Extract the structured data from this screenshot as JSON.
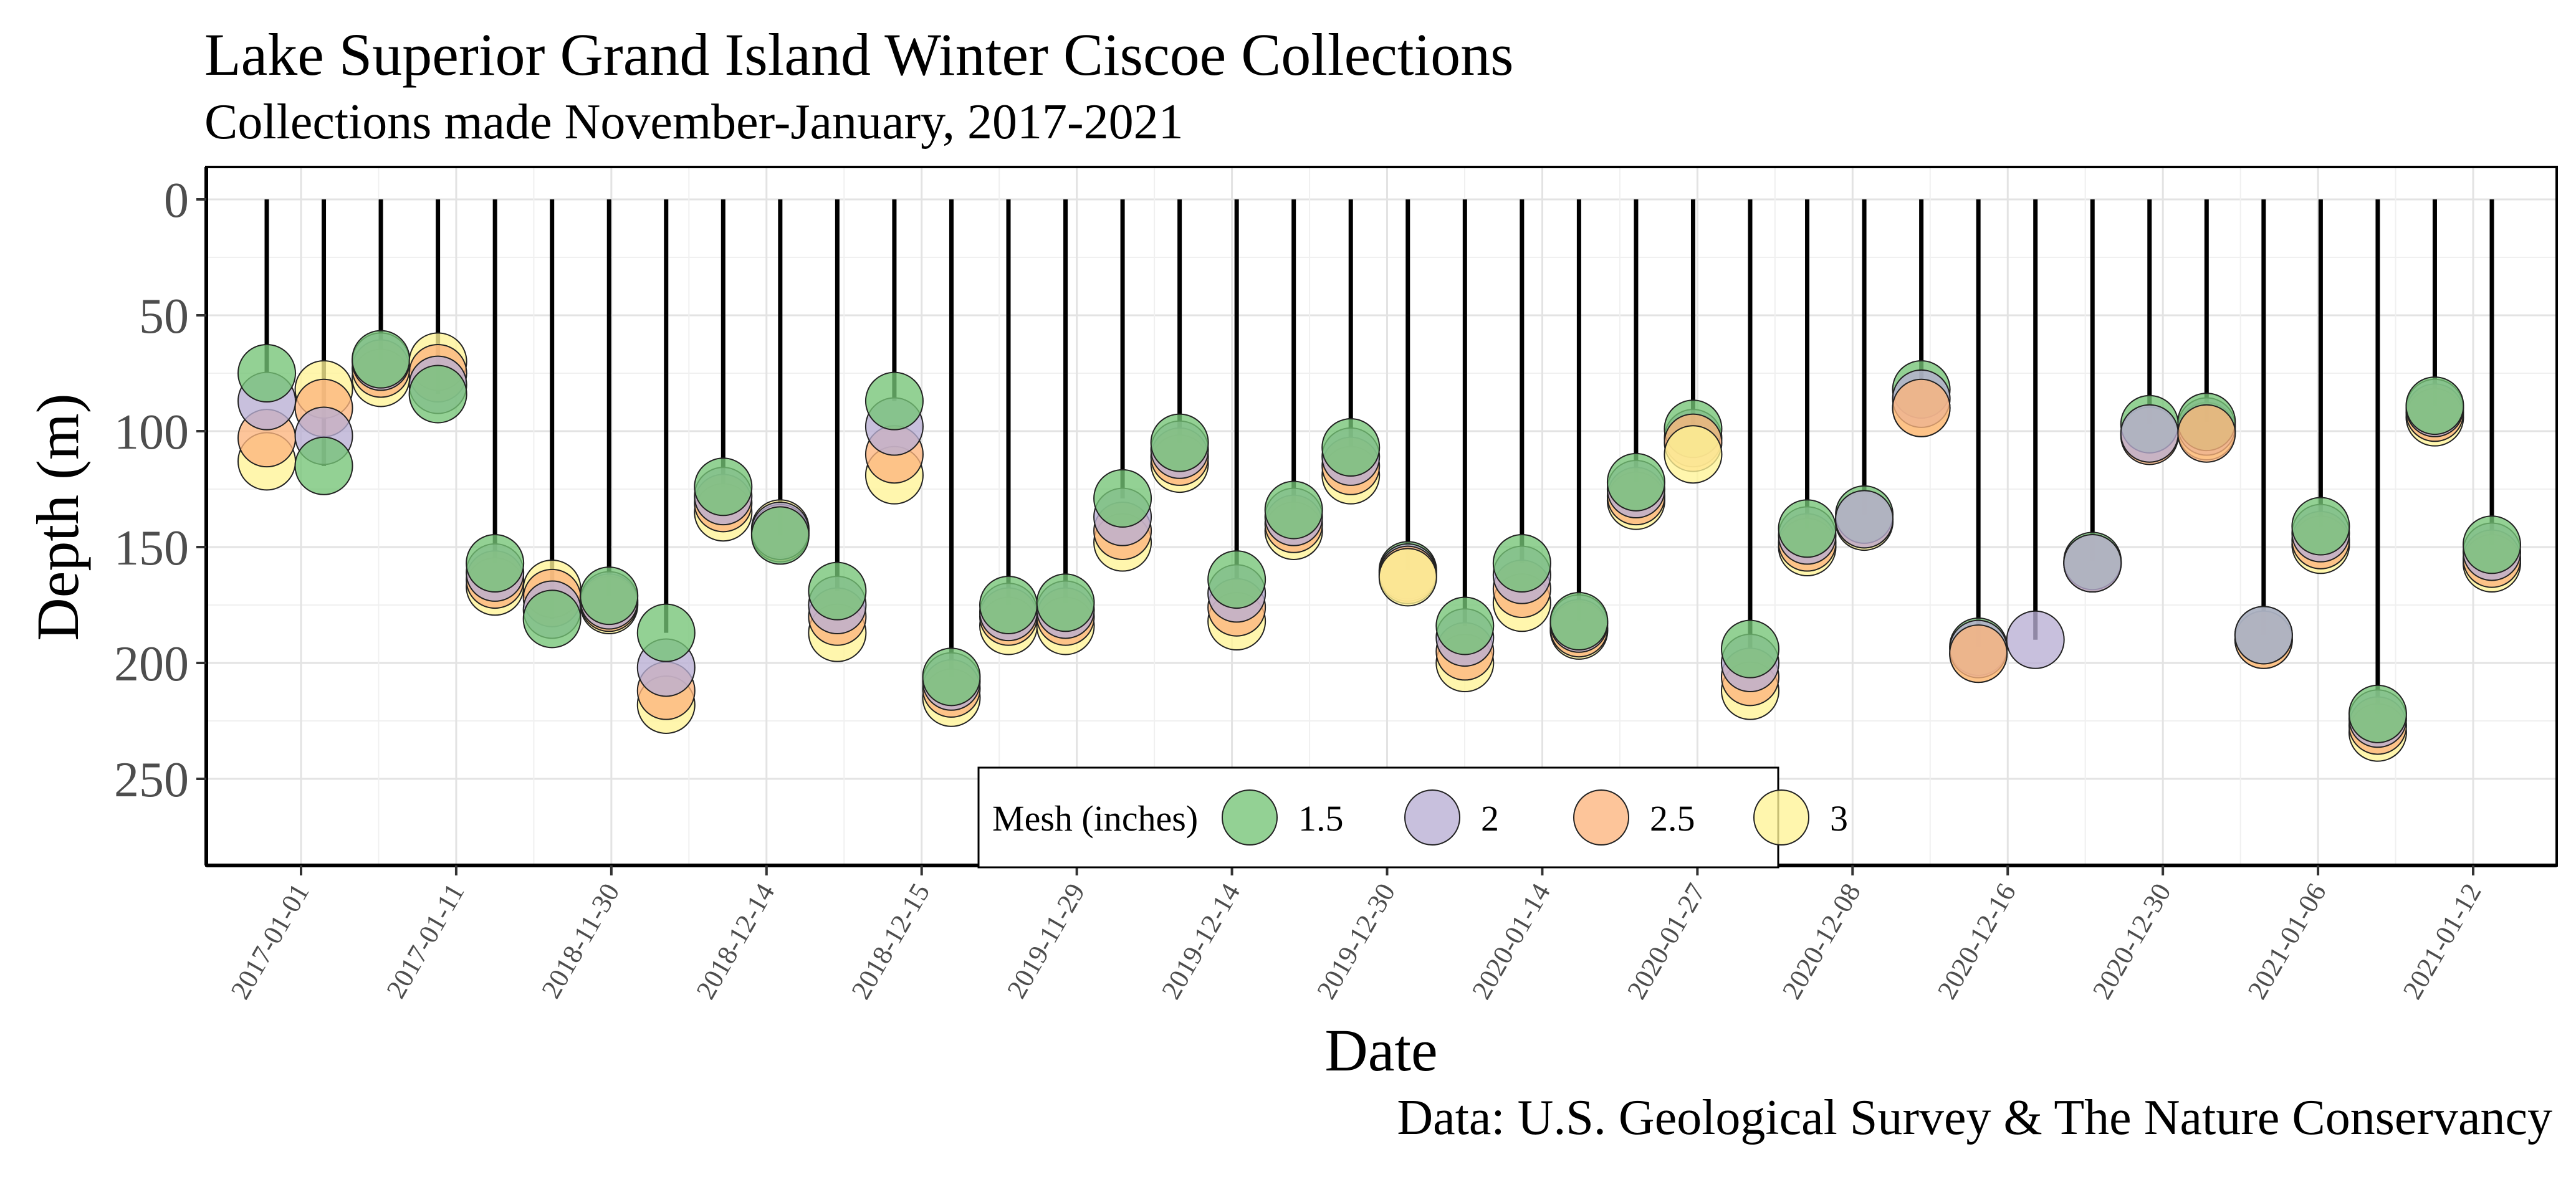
{
  "chart_data": {
    "type": "scatter",
    "title": "Lake Superior Grand Island Winter Ciscoe Collections",
    "subtitle": "Collections made November-January, 2017-2021",
    "caption": "Data: U.S. Geological Survey & The Nature Conservancy",
    "xlabel": "Date",
    "ylabel": "Depth (m)",
    "y_reversed": true,
    "ylim": [
      0,
      287
    ],
    "y_ticks": [
      0,
      50,
      100,
      150,
      200,
      250
    ],
    "grid": true,
    "legend": {
      "title": "Mesh (inches)",
      "placement": "bottom-center",
      "entries": [
        {
          "label": "1.5",
          "color": "#74c476"
        },
        {
          "label": "2",
          "color": "#b9aed3"
        },
        {
          "label": "2.5",
          "color": "#fdb57d"
        },
        {
          "label": "3",
          "color": "#fff496"
        }
      ]
    },
    "x_ticks": [
      "2017-01-01",
      "2017-01-11",
      "2018-11-30",
      "2018-12-14",
      "2018-12-15",
      "2019-11-29",
      "2019-12-14",
      "2019-12-30",
      "2020-01-14",
      "2020-01-27",
      "2020-12-08",
      "2020-12-16",
      "2020-12-30",
      "2021-01-06",
      "2021-01-12"
    ],
    "sets": [
      {
        "date": "2017-01-01",
        "depth": 75,
        "meshes": [
          "3",
          "2.5",
          "2",
          "1.5"
        ],
        "depths": [
          113,
          103,
          87,
          75
        ]
      },
      {
        "date": "2017-01-01",
        "depth": 115,
        "meshes": [
          "3",
          "2.5",
          "2",
          "1.5"
        ],
        "depths": [
          82,
          90,
          102,
          115
        ]
      },
      {
        "date": "2017-01-11",
        "depth": 69,
        "meshes": [
          "3",
          "2.5",
          "2",
          "1.5"
        ],
        "depths": [
          77,
          73,
          70,
          69
        ]
      },
      {
        "date": "2017-01-11",
        "depth": 84,
        "meshes": [
          "3",
          "2.5",
          "2",
          "1.5"
        ],
        "depths": [
          70,
          75,
          80,
          84
        ]
      },
      {
        "date": "2018-11-30",
        "depth": 157,
        "meshes": [
          "3",
          "2.5",
          "2",
          "1.5"
        ],
        "depths": [
          167,
          164,
          161,
          157
        ]
      },
      {
        "date": "2018-11-30",
        "depth": 181,
        "meshes": [
          "3",
          "2.5",
          "2",
          "1.5"
        ],
        "depths": [
          168,
          172,
          177,
          181
        ]
      },
      {
        "date": "2018-12-14",
        "depth": 171,
        "meshes": [
          "3",
          "2.5",
          "2",
          "1.5"
        ],
        "depths": [
          175,
          174,
          173,
          171
        ]
      },
      {
        "date": "2018-12-14",
        "depth": 187,
        "meshes": [
          "3",
          "2.5",
          "2",
          "1.5"
        ],
        "depths": [
          218,
          212,
          202,
          187
        ]
      },
      {
        "date": "2018-12-15",
        "depth": 124,
        "meshes": [
          "3",
          "2.5",
          "2",
          "1.5"
        ],
        "depths": [
          135,
          131,
          128,
          124
        ]
      },
      {
        "date": "2018-12-15",
        "depth": 145,
        "meshes": [
          "3",
          "2.5",
          "2",
          "1.5"
        ],
        "depths": [
          142,
          144,
          143,
          145
        ]
      },
      {
        "date": "2019-11-29",
        "depth": 169,
        "meshes": [
          "3",
          "2.5",
          "2",
          "1.5"
        ],
        "depths": [
          187,
          180,
          175,
          169
        ]
      },
      {
        "date": "2019-11-29",
        "depth": 87,
        "meshes": [
          "3",
          "2.5",
          "2",
          "1.5"
        ],
        "depths": [
          119,
          110,
          98,
          87
        ]
      },
      {
        "date": "2019-11-29",
        "depth": 206,
        "meshes": [
          "3",
          "2.5",
          "2",
          "1.5"
        ],
        "depths": [
          215,
          211,
          208,
          206
        ]
      },
      {
        "date": "2019-12-14",
        "depth": 175,
        "meshes": [
          "3",
          "2.5",
          "2",
          "1.5"
        ],
        "depths": [
          184,
          180,
          178,
          175
        ]
      },
      {
        "date": "2019-12-14",
        "depth": 174,
        "meshes": [
          "3",
          "2.5",
          "2",
          "1.5"
        ],
        "depths": [
          184,
          180,
          177,
          174
        ]
      },
      {
        "date": "2019-12-14",
        "depth": 129,
        "meshes": [
          "3",
          "2.5",
          "2",
          "1.5"
        ],
        "depths": [
          148,
          143,
          137,
          129
        ]
      },
      {
        "date": "2019-12-30",
        "depth": 105,
        "meshes": [
          "3",
          "2.5",
          "2",
          "1.5"
        ],
        "depths": [
          114,
          111,
          108,
          105
        ]
      },
      {
        "date": "2019-12-30",
        "depth": 164,
        "meshes": [
          "3",
          "2.5",
          "2",
          "1.5"
        ],
        "depths": [
          182,
          176,
          170,
          164
        ]
      },
      {
        "date": "2019-12-30",
        "depth": 134,
        "meshes": [
          "3",
          "2.5",
          "2",
          "1.5"
        ],
        "depths": [
          143,
          140,
          137,
          134
        ]
      },
      {
        "date": "2020-01-14",
        "depth": 107,
        "meshes": [
          "3",
          "2.5",
          "2",
          "1.5"
        ],
        "depths": [
          119,
          115,
          111,
          107
        ]
      },
      {
        "date": "2020-01-14",
        "depth": 160,
        "meshes": [
          "1.5",
          "2",
          "2.5",
          "3"
        ],
        "depths": [
          160,
          161,
          162,
          163
        ]
      },
      {
        "date": "2020-01-14",
        "depth": 184,
        "meshes": [
          "3",
          "2.5",
          "2",
          "1.5"
        ],
        "depths": [
          200,
          195,
          189,
          184
        ]
      },
      {
        "date": "2020-01-27",
        "depth": 157,
        "meshes": [
          "3",
          "2.5",
          "2",
          "1.5"
        ],
        "depths": [
          174,
          168,
          162,
          157
        ]
      },
      {
        "date": "2020-01-27",
        "depth": 182,
        "meshes": [
          "3",
          "2.5",
          "2",
          "1.5"
        ],
        "depths": [
          186,
          185,
          183,
          182
        ]
      },
      {
        "date": "2020-01-27",
        "depth": 122,
        "meshes": [
          "3",
          "2.5",
          "2",
          "1.5"
        ],
        "depths": [
          130,
          128,
          125,
          122
        ]
      },
      {
        "date": "2020-12-08",
        "depth": 99,
        "meshes": [
          "2",
          "1.5",
          "2.5",
          "3"
        ],
        "depths": [
          103,
          99,
          105,
          110
        ]
      },
      {
        "date": "2020-12-08",
        "depth": 194,
        "meshes": [
          "3",
          "2.5",
          "2",
          "1.5"
        ],
        "depths": [
          212,
          206,
          200,
          194
        ]
      },
      {
        "date": "2020-12-08",
        "depth": 142,
        "meshes": [
          "3",
          "2.5",
          "2",
          "1.5"
        ],
        "depths": [
          150,
          148,
          145,
          142
        ]
      },
      {
        "date": "2020-12-16",
        "depth": 136,
        "meshes": [
          "3",
          "2.5",
          "1.5",
          "2"
        ],
        "depths": [
          139,
          138,
          136,
          138
        ]
      },
      {
        "date": "2020-12-16",
        "depth": 82,
        "meshes": [
          "3",
          "1.5",
          "2",
          "2.5"
        ],
        "depths": [
          90,
          82,
          86,
          90
        ]
      },
      {
        "date": "2020-12-16",
        "depth": 193,
        "meshes": [
          "3",
          "1.5",
          "2",
          "2.5"
        ],
        "depths": [
          196,
          193,
          194,
          196
        ]
      },
      {
        "date": "2020-12-30",
        "depth": 190,
        "meshes": [
          "2"
        ],
        "depths": [
          190
        ]
      },
      {
        "date": "2020-12-30",
        "depth": 156,
        "meshes": [
          "3",
          "2.5",
          "1.5",
          "2"
        ],
        "depths": [
          157,
          157,
          156,
          157
        ]
      },
      {
        "date": "2020-12-30",
        "depth": 97,
        "meshes": [
          "3",
          "2.5",
          "1.5",
          "2"
        ],
        "depths": [
          101,
          102,
          97,
          101
        ]
      },
      {
        "date": "2021-01-06",
        "depth": 96,
        "meshes": [
          "3",
          "2",
          "1.5",
          "2.5"
        ],
        "depths": [
          100,
          98,
          96,
          101
        ]
      },
      {
        "date": "2021-01-06",
        "depth": 188,
        "meshes": [
          "3",
          "2.5",
          "1.5",
          "2"
        ],
        "depths": [
          190,
          190,
          188,
          188
        ]
      },
      {
        "date": "2021-01-06",
        "depth": 141,
        "meshes": [
          "3",
          "2.5",
          "2",
          "1.5"
        ],
        "depths": [
          149,
          147,
          144,
          141
        ]
      },
      {
        "date": "2021-01-12",
        "depth": 222,
        "meshes": [
          "3",
          "2.5",
          "2",
          "1.5"
        ],
        "depths": [
          230,
          227,
          224,
          222
        ]
      },
      {
        "date": "2021-01-12",
        "depth": 89,
        "meshes": [
          "3",
          "2.5",
          "2",
          "1.5"
        ],
        "depths": [
          94,
          92,
          90,
          89
        ]
      },
      {
        "date": "2021-01-12",
        "depth": 149,
        "meshes": [
          "3",
          "2.5",
          "2",
          "1.5"
        ],
        "depths": [
          157,
          155,
          152,
          149
        ]
      }
    ]
  }
}
